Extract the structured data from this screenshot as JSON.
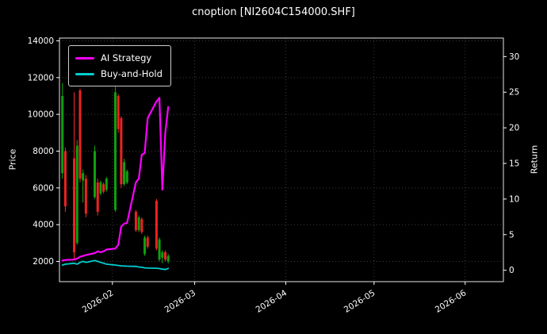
{
  "title": "cnoption [NI2604C154000.SHF]",
  "colors": {
    "background": "#000000",
    "text": "#ffffff",
    "axis": "#ffffff",
    "grid": "#3c3c3c",
    "candle_up": "#0fa00f",
    "candle_down": "#ee2222"
  },
  "legend": {
    "position": "upper left"
  },
  "chart_data": {
    "type": "line",
    "subtype": "line+candlestick",
    "title": "cnoption [NI2604C154000.SHF]",
    "x": [
      "2026-01-15",
      "2026-01-16",
      "2026-01-19",
      "2026-01-20",
      "2026-01-21",
      "2026-01-22",
      "2026-01-23",
      "2026-01-26",
      "2026-01-27",
      "2026-01-28",
      "2026-01-29",
      "2026-01-30",
      "2026-02-02",
      "2026-02-03",
      "2026-02-04",
      "2026-02-05",
      "2026-02-06",
      "2026-02-09",
      "2026-02-10",
      "2026-02-11",
      "2026-02-12",
      "2026-02-13",
      "2026-02-16",
      "2026-02-17",
      "2026-02-18",
      "2026-02-19",
      "2026-02-20"
    ],
    "series": [
      {
        "name": "AI Strategy",
        "color": "#ff00ff",
        "axis": "left",
        "values": [
          2050,
          2080,
          2100,
          2150,
          2250,
          2300,
          2350,
          2450,
          2550,
          2500,
          2550,
          2650,
          2700,
          2900,
          3900,
          4050,
          4100,
          6300,
          6500,
          7800,
          7900,
          9800,
          10700,
          10900,
          5900,
          9000,
          10400
        ]
      },
      {
        "name": "Buy-and-Hold",
        "color": "#00ced1",
        "axis": "left",
        "values": [
          1800,
          1850,
          1900,
          1850,
          1950,
          2000,
          1950,
          2050,
          2000,
          1950,
          1900,
          1850,
          1800,
          1780,
          1760,
          1750,
          1740,
          1730,
          1700,
          1680,
          1650,
          1640,
          1630,
          1610,
          1580,
          1560,
          1620
        ]
      }
    ],
    "candlesticks": [
      {
        "date": "2026-01-15",
        "open": 6800,
        "high": 11700,
        "low": 6500,
        "close": 11000
      },
      {
        "date": "2026-01-16",
        "open": 8000,
        "high": 8200,
        "low": 4700,
        "close": 5000
      },
      {
        "date": "2026-01-19",
        "open": 7600,
        "high": 11200,
        "low": 2100,
        "close": 2500
      },
      {
        "date": "2026-01-20",
        "open": 3000,
        "high": 8600,
        "low": 2900,
        "close": 8300
      },
      {
        "date": "2026-01-21",
        "open": 11300,
        "high": 11400,
        "low": 6300,
        "close": 6500
      },
      {
        "date": "2026-01-22",
        "open": 6400,
        "high": 7000,
        "low": 5200,
        "close": 6800
      },
      {
        "date": "2026-01-23",
        "open": 6500,
        "high": 6700,
        "low": 4400,
        "close": 4600
      },
      {
        "date": "2026-01-26",
        "open": 5500,
        "high": 8300,
        "low": 5400,
        "close": 8000
      },
      {
        "date": "2026-01-27",
        "open": 6300,
        "high": 6500,
        "low": 4500,
        "close": 4700
      },
      {
        "date": "2026-01-28",
        "open": 5700,
        "high": 6400,
        "low": 5600,
        "close": 6300
      },
      {
        "date": "2026-01-29",
        "open": 6200,
        "high": 6300,
        "low": 5700,
        "close": 5800
      },
      {
        "date": "2026-01-30",
        "open": 5900,
        "high": 6600,
        "low": 5800,
        "close": 6500
      },
      {
        "date": "2026-02-02",
        "open": 4800,
        "high": 11500,
        "low": 4700,
        "close": 11200
      },
      {
        "date": "2026-02-03",
        "open": 11000,
        "high": 11100,
        "low": 9000,
        "close": 9200
      },
      {
        "date": "2026-02-04",
        "open": 9800,
        "high": 9900,
        "low": 6000,
        "close": 6200
      },
      {
        "date": "2026-02-05",
        "open": 6200,
        "high": 7600,
        "low": 6100,
        "close": 7400
      },
      {
        "date": "2026-02-06",
        "open": 6300,
        "high": 7000,
        "low": 6200,
        "close": 6900
      },
      {
        "date": "2026-02-09",
        "open": 4700,
        "high": 4800,
        "low": 3600,
        "close": 3700
      },
      {
        "date": "2026-02-10",
        "open": 3700,
        "high": 4500,
        "low": 3600,
        "close": 4400
      },
      {
        "date": "2026-02-11",
        "open": 4300,
        "high": 4400,
        "low": 3500,
        "close": 3600
      },
      {
        "date": "2026-02-12",
        "open": 2400,
        "high": 3400,
        "low": 2300,
        "close": 3300
      },
      {
        "date": "2026-02-13",
        "open": 3300,
        "high": 3400,
        "low": 2700,
        "close": 2800
      },
      {
        "date": "2026-02-16",
        "open": 5300,
        "high": 5400,
        "low": 2600,
        "close": 2700
      },
      {
        "date": "2026-02-17",
        "open": 2100,
        "high": 3300,
        "low": 2000,
        "close": 3200
      },
      {
        "date": "2026-02-18",
        "open": 2200,
        "high": 2600,
        "low": 1900,
        "close": 2500
      },
      {
        "date": "2026-02-19",
        "open": 2500,
        "high": 2600,
        "low": 2000,
        "close": 2100
      },
      {
        "date": "2026-02-20",
        "open": 2000,
        "high": 2400,
        "low": 1900,
        "close": 2300
      }
    ],
    "left_axis": {
      "label": "Price",
      "ticks": [
        2000,
        4000,
        6000,
        8000,
        10000,
        12000,
        14000
      ],
      "range": [
        900,
        14150
      ]
    },
    "right_axis": {
      "label": "Return",
      "ticks": [
        0,
        5,
        10,
        15,
        20,
        25,
        30
      ],
      "range": [
        -1.6,
        32.6
      ]
    },
    "x_axis": {
      "ticks": [
        "2026-02",
        "2026-03",
        "2026-04",
        "2026-05",
        "2026-06"
      ],
      "range": [
        "2026-01-14",
        "2026-06-14"
      ]
    },
    "grid": true,
    "legend_position": "upper left"
  }
}
